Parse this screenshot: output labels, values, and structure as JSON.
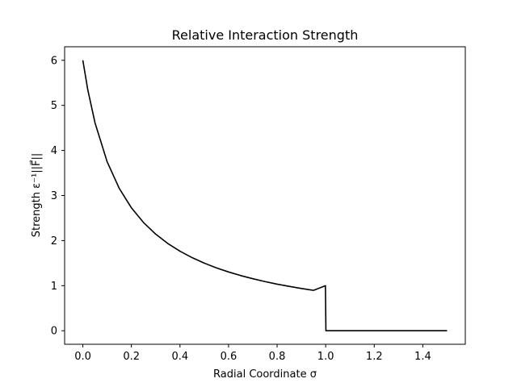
{
  "chart_data": {
    "type": "line",
    "title": "Relative Interaction Strength",
    "xlabel": "Radial Coordinate σ",
    "ylabel": "Strength ε⁻¹||F⃗||",
    "xlim": [
      -0.075,
      1.575
    ],
    "ylim": [
      -0.3,
      6.3
    ],
    "xticks": [
      0.0,
      0.2,
      0.4,
      0.6,
      0.8,
      1.0,
      1.2,
      1.4
    ],
    "xtick_labels": [
      "0.0",
      "0.2",
      "0.4",
      "0.6",
      "0.8",
      "1.0",
      "1.2",
      "1.4"
    ],
    "yticks": [
      0,
      1,
      2,
      3,
      4,
      5,
      6
    ],
    "ytick_labels": [
      "0",
      "1",
      "2",
      "3",
      "4",
      "5",
      "6"
    ],
    "grid": false,
    "series": [
      {
        "color": "#000000",
        "x": [
          0.0,
          0.02,
          0.05,
          0.1,
          0.15,
          0.2,
          0.25,
          0.3,
          0.35,
          0.4,
          0.45,
          0.5,
          0.55,
          0.6,
          0.65,
          0.7,
          0.75,
          0.8,
          0.85,
          0.9,
          0.95,
          0.999,
          1.001,
          1.1,
          1.2,
          1.3,
          1.4,
          1.5
        ],
        "y": [
          6.0,
          5.356,
          4.615,
          3.75,
          3.158,
          2.727,
          2.4,
          2.143,
          1.935,
          1.765,
          1.622,
          1.5,
          1.395,
          1.304,
          1.224,
          1.154,
          1.091,
          1.034,
          0.984,
          0.938,
          0.896,
          1.0,
          0.0,
          0.0,
          0.0,
          0.0,
          0.0,
          0.0
        ]
      }
    ]
  }
}
